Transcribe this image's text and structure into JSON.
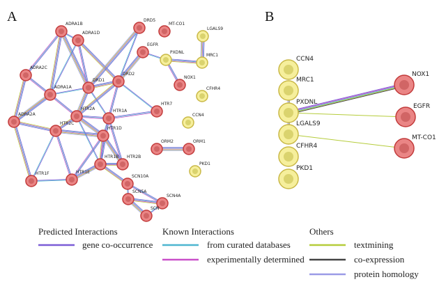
{
  "panels": [
    {
      "label": "A",
      "nodes": [
        "ADRA1B",
        "ADRA1D",
        "DRD5",
        "MT-CO1",
        "LGALS9",
        "EGFR",
        "PXDNL",
        "MRC1",
        "NOX1",
        "CFHR4",
        "ADRA2C",
        "ADRA1A",
        "DRD1",
        "DRD2",
        "HTR7",
        "HTR2A",
        "HTR1A",
        "CCN4",
        "HTR2C",
        "HTR1D",
        "ADRA2A",
        "HTR1F",
        "HTR1E",
        "HTR1B",
        "HTR2B",
        "ORM2",
        "ORM1",
        "PKD1",
        "SCN10A",
        "SCN5A",
        "SCN4A",
        "SCN"
      ]
    },
    {
      "label": "B",
      "nodes": [
        "CCN4",
        "MRC1",
        "PXDNL",
        "LGALS9",
        "CFHR4",
        "PKD1",
        "NOX1",
        "EGFR",
        "MT-CO1"
      ]
    }
  ],
  "legend": [
    {
      "title": "Predicted Interactions",
      "items": [
        "gene co-occurrence"
      ]
    },
    {
      "title": "Known Interactions",
      "items": [
        "from curated databases",
        "experimentally determined"
      ]
    },
    {
      "title": "Others",
      "items": [
        "textmining",
        "co-expression",
        "protein homology"
      ]
    }
  ]
}
